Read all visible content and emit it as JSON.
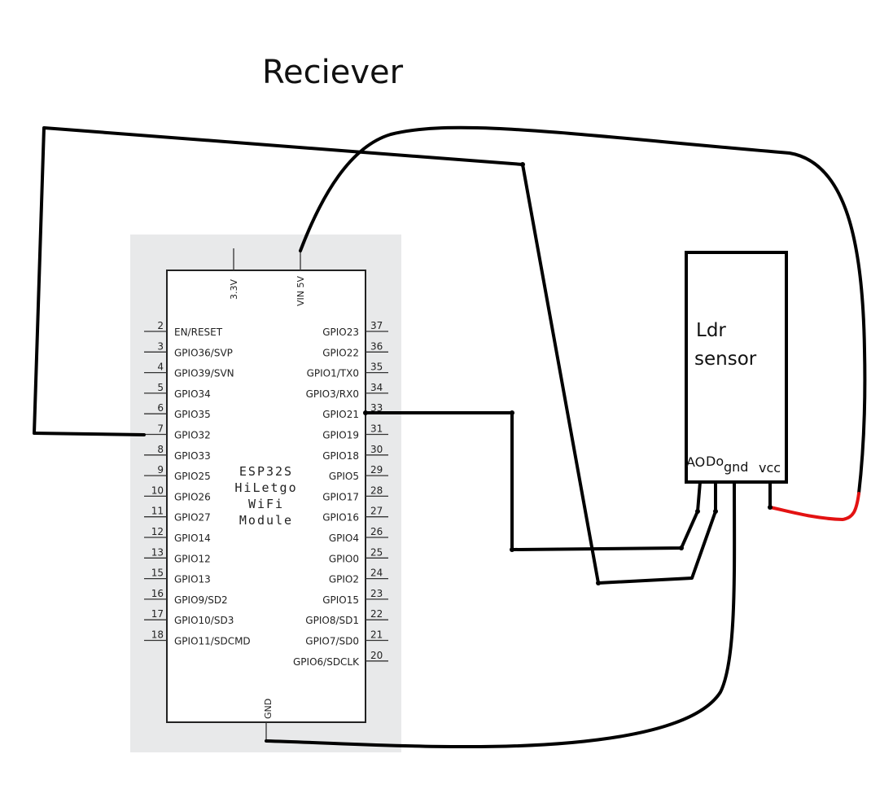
{
  "title": "Reciever",
  "module": {
    "label_lines": [
      "ESP32S",
      "HiLetgo",
      "WiFi",
      "Module"
    ],
    "top_pins": [
      "3.3V",
      "VIN 5V"
    ],
    "bottom_pin": "GND",
    "left_pins": [
      {
        "num": "2",
        "name": "EN/RESET"
      },
      {
        "num": "3",
        "name": "GPIO36/SVP"
      },
      {
        "num": "4",
        "name": "GPIO39/SVN"
      },
      {
        "num": "5",
        "name": "GPIO34"
      },
      {
        "num": "6",
        "name": "GPIO35"
      },
      {
        "num": "7",
        "name": "GPIO32"
      },
      {
        "num": "8",
        "name": "GPIO33"
      },
      {
        "num": "9",
        "name": "GPIO25"
      },
      {
        "num": "10",
        "name": "GPIO26"
      },
      {
        "num": "11",
        "name": "GPIO27"
      },
      {
        "num": "12",
        "name": "GPIO14"
      },
      {
        "num": "13",
        "name": "GPIO12"
      },
      {
        "num": "15",
        "name": "GPIO13"
      },
      {
        "num": "16",
        "name": "GPIO9/SD2"
      },
      {
        "num": "17",
        "name": "GPIO10/SD3"
      },
      {
        "num": "18",
        "name": "GPIO11/SDCMD"
      }
    ],
    "right_pins": [
      {
        "num": "37",
        "name": "GPIO23"
      },
      {
        "num": "36",
        "name": "GPIO22"
      },
      {
        "num": "35",
        "name": "GPIO1/TX0"
      },
      {
        "num": "34",
        "name": "GPIO3/RX0"
      },
      {
        "num": "33",
        "name": "GPIO21"
      },
      {
        "num": "31",
        "name": "GPIO19"
      },
      {
        "num": "30",
        "name": "GPIO18"
      },
      {
        "num": "29",
        "name": "GPIO5"
      },
      {
        "num": "28",
        "name": "GPIO17"
      },
      {
        "num": "27",
        "name": "GPIO16"
      },
      {
        "num": "26",
        "name": "GPIO4"
      },
      {
        "num": "25",
        "name": "GPIO0"
      },
      {
        "num": "24",
        "name": "GPIO2"
      },
      {
        "num": "23",
        "name": "GPIO15"
      },
      {
        "num": "22",
        "name": "GPIO8/SD1"
      },
      {
        "num": "21",
        "name": "GPIO7/SD0"
      },
      {
        "num": "20",
        "name": "GPIO6/SDCLK"
      }
    ]
  },
  "sensor": {
    "label_line1": "Ldr",
    "label_line2": "sensor",
    "pins": {
      "ao": "AO",
      "do": "Do",
      "gnd": "gnd",
      "vcc": "vcc"
    }
  },
  "colors": {
    "wire": "#000000",
    "power_wire": "#e31212",
    "module_background": "#e8e9ea"
  }
}
